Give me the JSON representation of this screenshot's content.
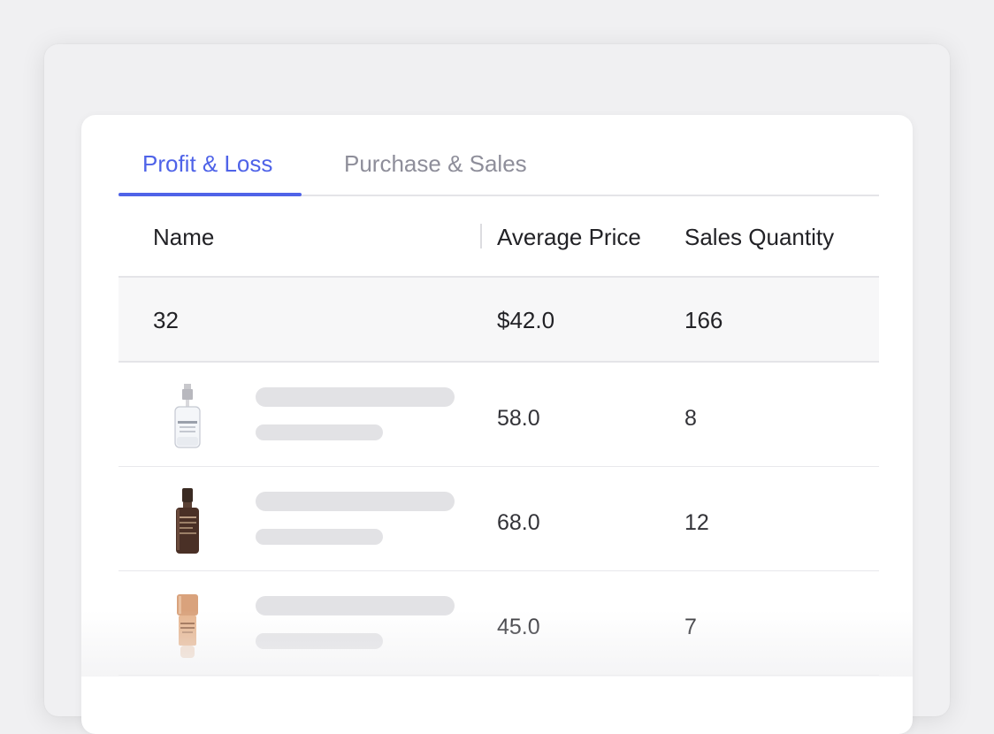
{
  "tabs": [
    {
      "label": "Profit & Loss",
      "active": true
    },
    {
      "label": "Purchase & Sales",
      "active": false
    }
  ],
  "table": {
    "columns": [
      "Name",
      "Average Price",
      "Sales Quantity"
    ],
    "summary": {
      "name": "32",
      "average_price": "$42.0",
      "sales_quantity": "166"
    },
    "rows": [
      {
        "thumbnail": "clear-glass-perfume-bottle",
        "average_price": "58.0",
        "sales_quantity": "8"
      },
      {
        "thumbnail": "dark-amber-serum-bottle",
        "average_price": "68.0",
        "sales_quantity": "12"
      },
      {
        "thumbnail": "peach-foundation-bottle",
        "average_price": "45.0",
        "sales_quantity": "7"
      }
    ]
  },
  "colors": {
    "accent": "#4f63e8",
    "tab_inactive": "#8e8e9a",
    "skeleton": "#e2e2e5",
    "summary_bg": "#f7f7f8"
  }
}
